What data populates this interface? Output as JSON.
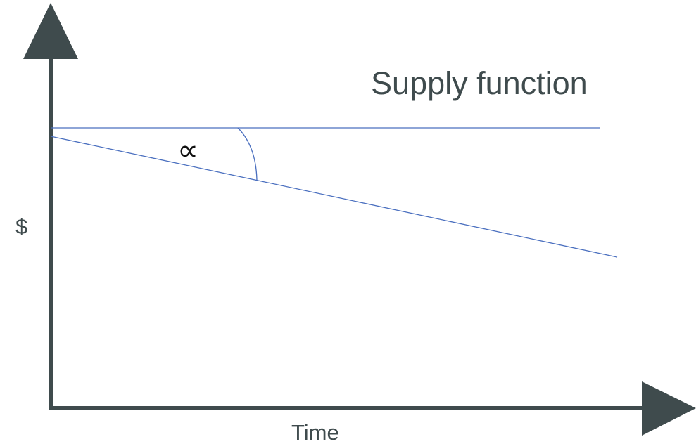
{
  "title": "Supply function",
  "axes": {
    "y_label": "$",
    "x_label": "Time"
  },
  "angle_symbol": "∝",
  "colors": {
    "axis": "#3f4b4d",
    "line": "#4a6fbf",
    "text": "#3f4b4d",
    "symbol": "#111111"
  }
}
